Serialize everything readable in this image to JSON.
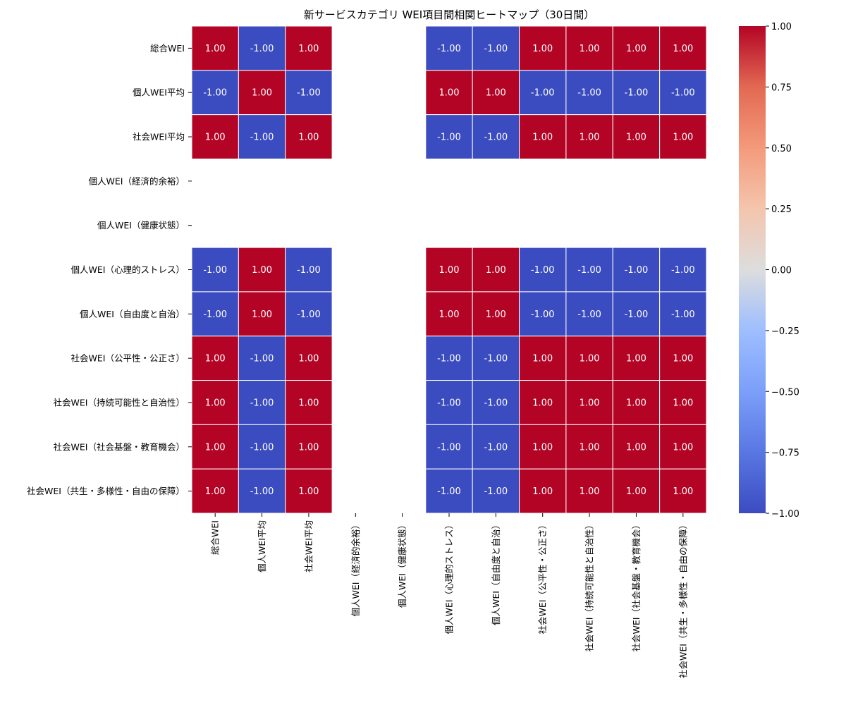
{
  "chart_data": {
    "type": "heatmap",
    "title": "新サービスカテゴリ WEI項目間相関ヒートマップ（30日間）",
    "labels": [
      "総合WEI",
      "個人WEI平均",
      "社会WEI平均",
      "個人WEI（経済的余裕）",
      "個人WEI（健康状態）",
      "個人WEI（心理的ストレス）",
      "個人WEI（自由度と自治）",
      "社会WEI（公平性・公正さ）",
      "社会WEI（持続可能性と自治性）",
      "社会WEI（社会基盤・教育機会）",
      "社会WEI（共生・多様性・自由の保障）"
    ],
    "values": [
      [
        1,
        -1,
        1,
        null,
        null,
        -1,
        -1,
        1,
        1,
        1,
        1
      ],
      [
        -1,
        1,
        -1,
        null,
        null,
        1,
        1,
        -1,
        -1,
        -1,
        -1
      ],
      [
        1,
        -1,
        1,
        null,
        null,
        -1,
        -1,
        1,
        1,
        1,
        1
      ],
      [
        null,
        null,
        null,
        null,
        null,
        null,
        null,
        null,
        null,
        null,
        null
      ],
      [
        null,
        null,
        null,
        null,
        null,
        null,
        null,
        null,
        null,
        null,
        null
      ],
      [
        -1,
        1,
        -1,
        null,
        null,
        1,
        1,
        -1,
        -1,
        -1,
        -1
      ],
      [
        -1,
        1,
        -1,
        null,
        null,
        1,
        1,
        -1,
        -1,
        -1,
        -1
      ],
      [
        1,
        -1,
        1,
        null,
        null,
        -1,
        -1,
        1,
        1,
        1,
        1
      ],
      [
        1,
        -1,
        1,
        null,
        null,
        -1,
        -1,
        1,
        1,
        1,
        1
      ],
      [
        1,
        -1,
        1,
        null,
        null,
        -1,
        -1,
        1,
        1,
        1,
        1
      ],
      [
        1,
        -1,
        1,
        null,
        null,
        -1,
        -1,
        1,
        1,
        1,
        1
      ]
    ],
    "value_format": "0.00",
    "colormap": "coolwarm",
    "colors": {
      "high": "#b40426",
      "low": "#3b4cc0",
      "mid": "#dddddd"
    },
    "vmin": -1,
    "vmax": 1,
    "colorbar_ticks": [
      "1.00",
      "0.75",
      "0.50",
      "0.25",
      "0.00",
      "−0.25",
      "−0.50",
      "−0.75",
      "−1.00"
    ],
    "grid_lines": "white"
  }
}
